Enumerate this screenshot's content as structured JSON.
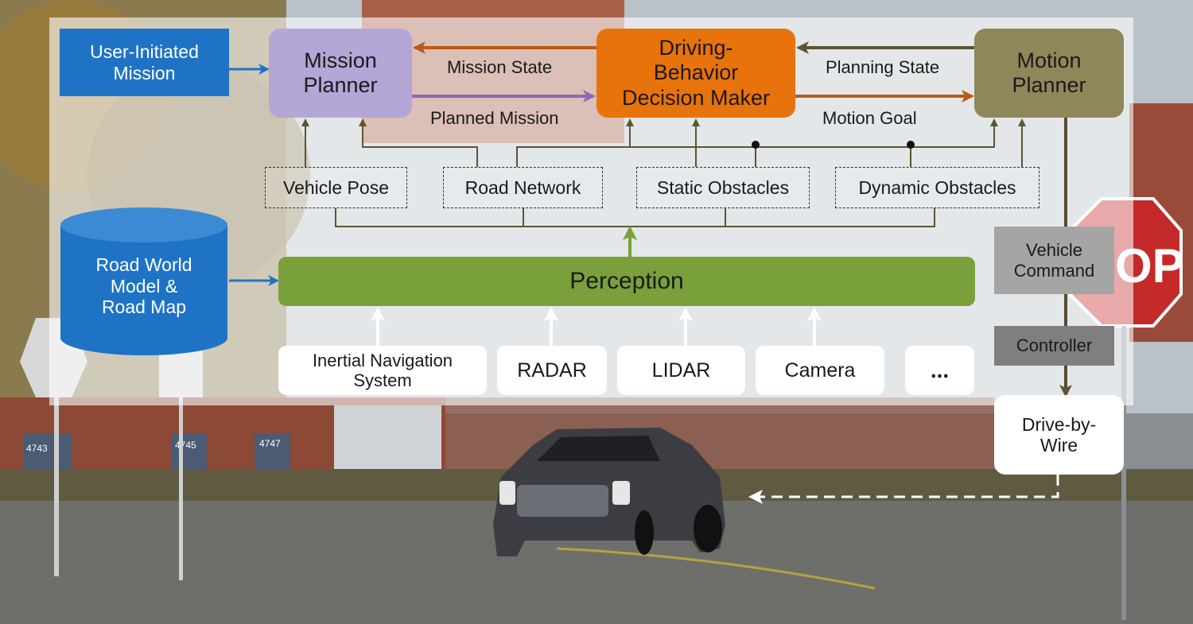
{
  "colors": {
    "mission_planner": "#b4a6d6",
    "decision_maker": "#e8720c",
    "motion_planner": "#8f875a",
    "user_mission": "#1f73c4",
    "road_model": "#1f73c4",
    "perception": "#79a03a",
    "vehicle_command": "#a5a5a5",
    "controller": "#7f7f7f",
    "arrow_mission_state": "#b85a1a",
    "arrow_planned_mission": "#8a6bb5",
    "arrow_planning_state": "#5c5530",
    "arrow_motion_goal": "#b85a1a",
    "feedback_line": "#5c5530",
    "perception_arrow": "#79a03a",
    "blue_arrow": "#1f73c4"
  },
  "nodes": {
    "user_mission": "User-Initiated\nMission",
    "mission_planner": "Mission\nPlanner",
    "decision_maker": "Driving-\nBehavior\nDecision Maker",
    "motion_planner": "Motion\nPlanner",
    "road_model": "Road World\nModel &\nRoad Map",
    "perception": "Perception",
    "vehicle_pose": "Vehicle Pose",
    "road_network": "Road Network",
    "static_obstacles": "Static Obstacles",
    "dynamic_obstacles": "Dynamic Obstacles",
    "vehicle_command": "Vehicle\nCommand",
    "controller": "Controller",
    "drive_by_wire": "Drive-by-\nWire"
  },
  "sensors": {
    "ins": "Inertial Navigation\nSystem",
    "radar": "RADAR",
    "lidar": "LIDAR",
    "camera": "Camera",
    "more": "..."
  },
  "edge_labels": {
    "mission_state": "Mission State",
    "planned_mission": "Planned Mission",
    "planning_state": "Planning State",
    "motion_goal": "Motion Goal"
  },
  "background": {
    "house_numbers": [
      "4743",
      "4745",
      "4747"
    ],
    "stop_sign_text": "OP"
  }
}
